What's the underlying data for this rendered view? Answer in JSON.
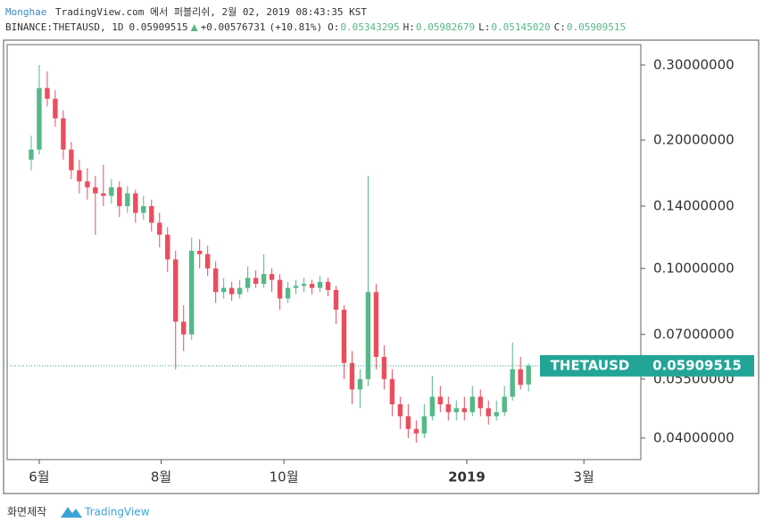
{
  "chart_data": {
    "type": "candlestick",
    "header": {
      "author": "Monghae",
      "published": "TradingView.com 에서 퍼블리쉬, 2월 02, 2019 08:43:35 KST",
      "symbol": "BINANCE:THETAUSD, 1D",
      "last": "0.05909515",
      "change": "+0.00576731",
      "change_pct": "(+10.81%)",
      "ohlc": [
        {
          "key": "O:",
          "value": "0.05343295"
        },
        {
          "key": "H:",
          "value": "0.05982679"
        },
        {
          "key": "L:",
          "value": "0.05145020"
        },
        {
          "key": "C:",
          "value": "0.05909515"
        }
      ]
    },
    "symbol_label": "THETAUSD",
    "last_price": 0.05909515,
    "log_scale": true,
    "up_color": "#53b987",
    "down_color": "#eb4d5c",
    "accent_color": "#22a596",
    "ylim": [
      0.0356,
      0.335
    ],
    "yticks": [
      {
        "value": 0.3,
        "label": "0.30000000"
      },
      {
        "value": 0.2,
        "label": "0.20000000"
      },
      {
        "value": 0.14,
        "label": "0.14000000"
      },
      {
        "value": 0.1,
        "label": "0.10000000"
      },
      {
        "value": 0.07,
        "label": "0.07000000"
      },
      {
        "value": 0.055,
        "label": "0.05500000"
      },
      {
        "value": 0.04,
        "label": "0.04000000"
      }
    ],
    "xlim": [
      -3,
      76
    ],
    "xticks": [
      {
        "value": 1,
        "label": "6월"
      },
      {
        "value": 16.2,
        "label": "8월"
      },
      {
        "value": 31.5,
        "label": "10월"
      },
      {
        "value": 54.3,
        "label": "2019"
      },
      {
        "value": 68.9,
        "label": "3월"
      }
    ],
    "candles": [
      [
        0.18,
        0.205,
        0.17,
        0.19
      ],
      [
        0.19,
        0.3,
        0.185,
        0.265
      ],
      [
        0.265,
        0.29,
        0.24,
        0.25
      ],
      [
        0.25,
        0.262,
        0.215,
        0.225
      ],
      [
        0.225,
        0.235,
        0.18,
        0.19
      ],
      [
        0.19,
        0.198,
        0.162,
        0.17
      ],
      [
        0.17,
        0.18,
        0.15,
        0.16
      ],
      [
        0.16,
        0.172,
        0.145,
        0.155
      ],
      [
        0.155,
        0.165,
        0.12,
        0.15
      ],
      [
        0.15,
        0.175,
        0.14,
        0.148
      ],
      [
        0.148,
        0.162,
        0.142,
        0.155
      ],
      [
        0.155,
        0.16,
        0.132,
        0.14
      ],
      [
        0.14,
        0.156,
        0.135,
        0.15
      ],
      [
        0.15,
        0.153,
        0.128,
        0.135
      ],
      [
        0.135,
        0.148,
        0.13,
        0.14
      ],
      [
        0.14,
        0.145,
        0.122,
        0.128
      ],
      [
        0.128,
        0.135,
        0.112,
        0.12
      ],
      [
        0.12,
        0.125,
        0.098,
        0.105
      ],
      [
        0.105,
        0.11,
        0.058,
        0.075
      ],
      [
        0.075,
        0.082,
        0.064,
        0.07
      ],
      [
        0.07,
        0.118,
        0.068,
        0.11
      ],
      [
        0.11,
        0.117,
        0.1,
        0.108
      ],
      [
        0.108,
        0.113,
        0.096,
        0.1
      ],
      [
        0.1,
        0.104,
        0.083,
        0.088
      ],
      [
        0.088,
        0.095,
        0.085,
        0.09
      ],
      [
        0.09,
        0.093,
        0.084,
        0.087
      ],
      [
        0.087,
        0.094,
        0.085,
        0.09
      ],
      [
        0.09,
        0.101,
        0.088,
        0.095
      ],
      [
        0.095,
        0.099,
        0.09,
        0.092
      ],
      [
        0.092,
        0.108,
        0.09,
        0.097
      ],
      [
        0.097,
        0.1,
        0.088,
        0.094
      ],
      [
        0.094,
        0.097,
        0.08,
        0.085
      ],
      [
        0.085,
        0.093,
        0.083,
        0.09
      ],
      [
        0.09,
        0.094,
        0.087,
        0.091
      ],
      [
        0.091,
        0.095,
        0.088,
        0.092
      ],
      [
        0.092,
        0.094,
        0.087,
        0.09
      ],
      [
        0.09,
        0.096,
        0.088,
        0.093
      ],
      [
        0.093,
        0.095,
        0.086,
        0.089
      ],
      [
        0.089,
        0.091,
        0.074,
        0.08
      ],
      [
        0.08,
        0.082,
        0.055,
        0.06
      ],
      [
        0.06,
        0.064,
        0.048,
        0.052
      ],
      [
        0.052,
        0.058,
        0.047,
        0.055
      ],
      [
        0.055,
        0.165,
        0.053,
        0.088
      ],
      [
        0.088,
        0.092,
        0.058,
        0.062
      ],
      [
        0.062,
        0.066,
        0.052,
        0.055
      ],
      [
        0.055,
        0.058,
        0.045,
        0.048
      ],
      [
        0.048,
        0.05,
        0.042,
        0.045
      ],
      [
        0.045,
        0.048,
        0.04,
        0.042
      ],
      [
        0.042,
        0.044,
        0.039,
        0.041
      ],
      [
        0.041,
        0.048,
        0.04,
        0.045
      ],
      [
        0.045,
        0.056,
        0.044,
        0.05
      ],
      [
        0.05,
        0.053,
        0.046,
        0.048
      ],
      [
        0.048,
        0.05,
        0.044,
        0.046
      ],
      [
        0.046,
        0.049,
        0.044,
        0.047
      ],
      [
        0.047,
        0.05,
        0.044,
        0.046
      ],
      [
        0.046,
        0.053,
        0.045,
        0.05
      ],
      [
        0.05,
        0.052,
        0.045,
        0.047
      ],
      [
        0.047,
        0.049,
        0.043,
        0.045
      ],
      [
        0.045,
        0.049,
        0.044,
        0.046
      ],
      [
        0.046,
        0.053,
        0.045,
        0.05
      ],
      [
        0.05,
        0.067,
        0.049,
        0.058
      ],
      [
        0.058,
        0.062,
        0.052,
        0.0533
      ],
      [
        0.05343295,
        0.05982679,
        0.0514502,
        0.05909515
      ]
    ],
    "footer": {
      "made_by": "화면제작",
      "brand": "TradingView"
    }
  }
}
